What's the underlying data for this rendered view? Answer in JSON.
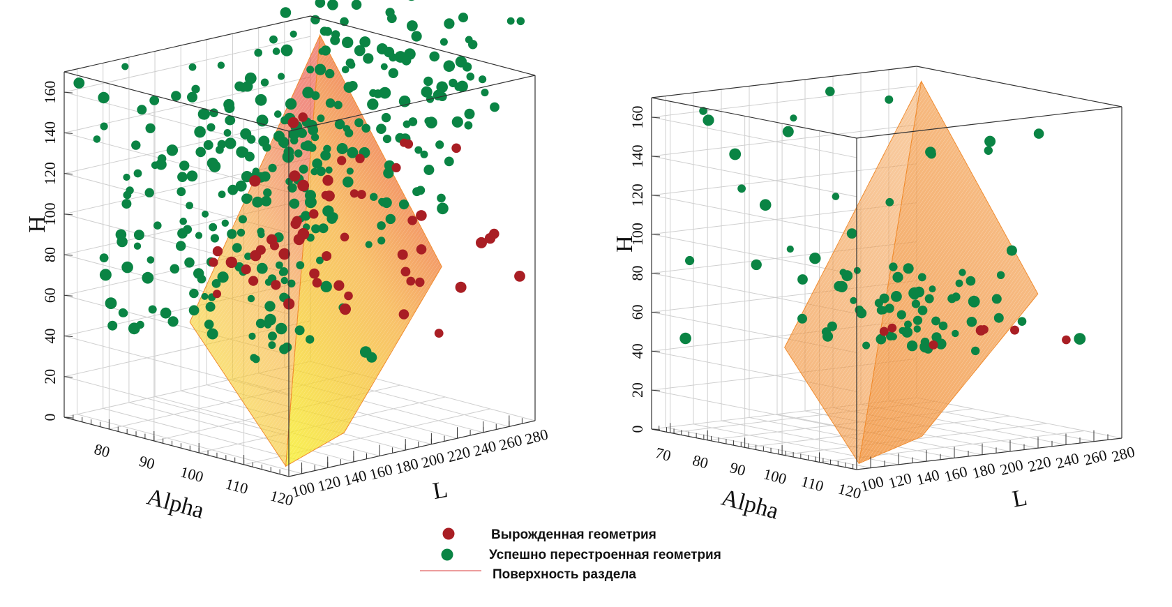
{
  "legend": {
    "items": [
      {
        "label": "Вырожденная геометрия",
        "marker": "circle",
        "color": "#a91e24"
      },
      {
        "label": "Успешно перестроенная геометрия",
        "marker": "circle",
        "color": "#0a8444"
      },
      {
        "label": "Поверхность раздела",
        "marker": "line",
        "color": "#e06060"
      }
    ]
  },
  "chart_data": [
    {
      "type": "scatter3d",
      "title": "",
      "xlabel": "L",
      "ylabel": "Alpha",
      "zlabel": "H",
      "x_ticks": [
        "100",
        "120",
        "140",
        "160",
        "180",
        "200",
        "220",
        "240",
        "260",
        "280"
      ],
      "y_ticks": [
        "80",
        "90",
        "100",
        "110",
        "120"
      ],
      "z_ticks": [
        "0",
        "20",
        "40",
        "60",
        "80",
        "100",
        "120",
        "140",
        "160"
      ],
      "xlim": [
        90,
        280
      ],
      "ylim": [
        70,
        120
      ],
      "zlim": [
        0,
        170
      ],
      "surface": {
        "name": "Поверхность раздела",
        "colormap": "yellow-orange-red"
      },
      "series": [
        {
          "name": "Успешно перестроенная геометрия",
          "color": "#0a8444",
          "points_count": "dense, ~400"
        },
        {
          "name": "Вырожденная геометрия",
          "color": "#a91e24",
          "points_count": "~60"
        }
      ]
    },
    {
      "type": "scatter3d",
      "title": "",
      "xlabel": "L",
      "ylabel": "Alpha",
      "zlabel": "H",
      "x_ticks": [
        "100",
        "120",
        "140",
        "160",
        "180",
        "200",
        "220",
        "240",
        "260",
        "280"
      ],
      "y_ticks": [
        "70",
        "80",
        "90",
        "100",
        "110",
        "120"
      ],
      "z_ticks": [
        "0",
        "20",
        "40",
        "60",
        "80",
        "100",
        "120",
        "140",
        "160"
      ],
      "xlim": [
        90,
        280
      ],
      "ylim": [
        65,
        120
      ],
      "zlim": [
        0,
        170
      ],
      "surface": {
        "name": "Поверхность раздела",
        "colormap": "orange"
      },
      "series": [
        {
          "name": "Успешно перестроенная геометрия",
          "color": "#0a8444",
          "points_count": "~90"
        },
        {
          "name": "Вырожденная геометрия",
          "color": "#a91e24",
          "points_count": "~7"
        }
      ]
    }
  ]
}
